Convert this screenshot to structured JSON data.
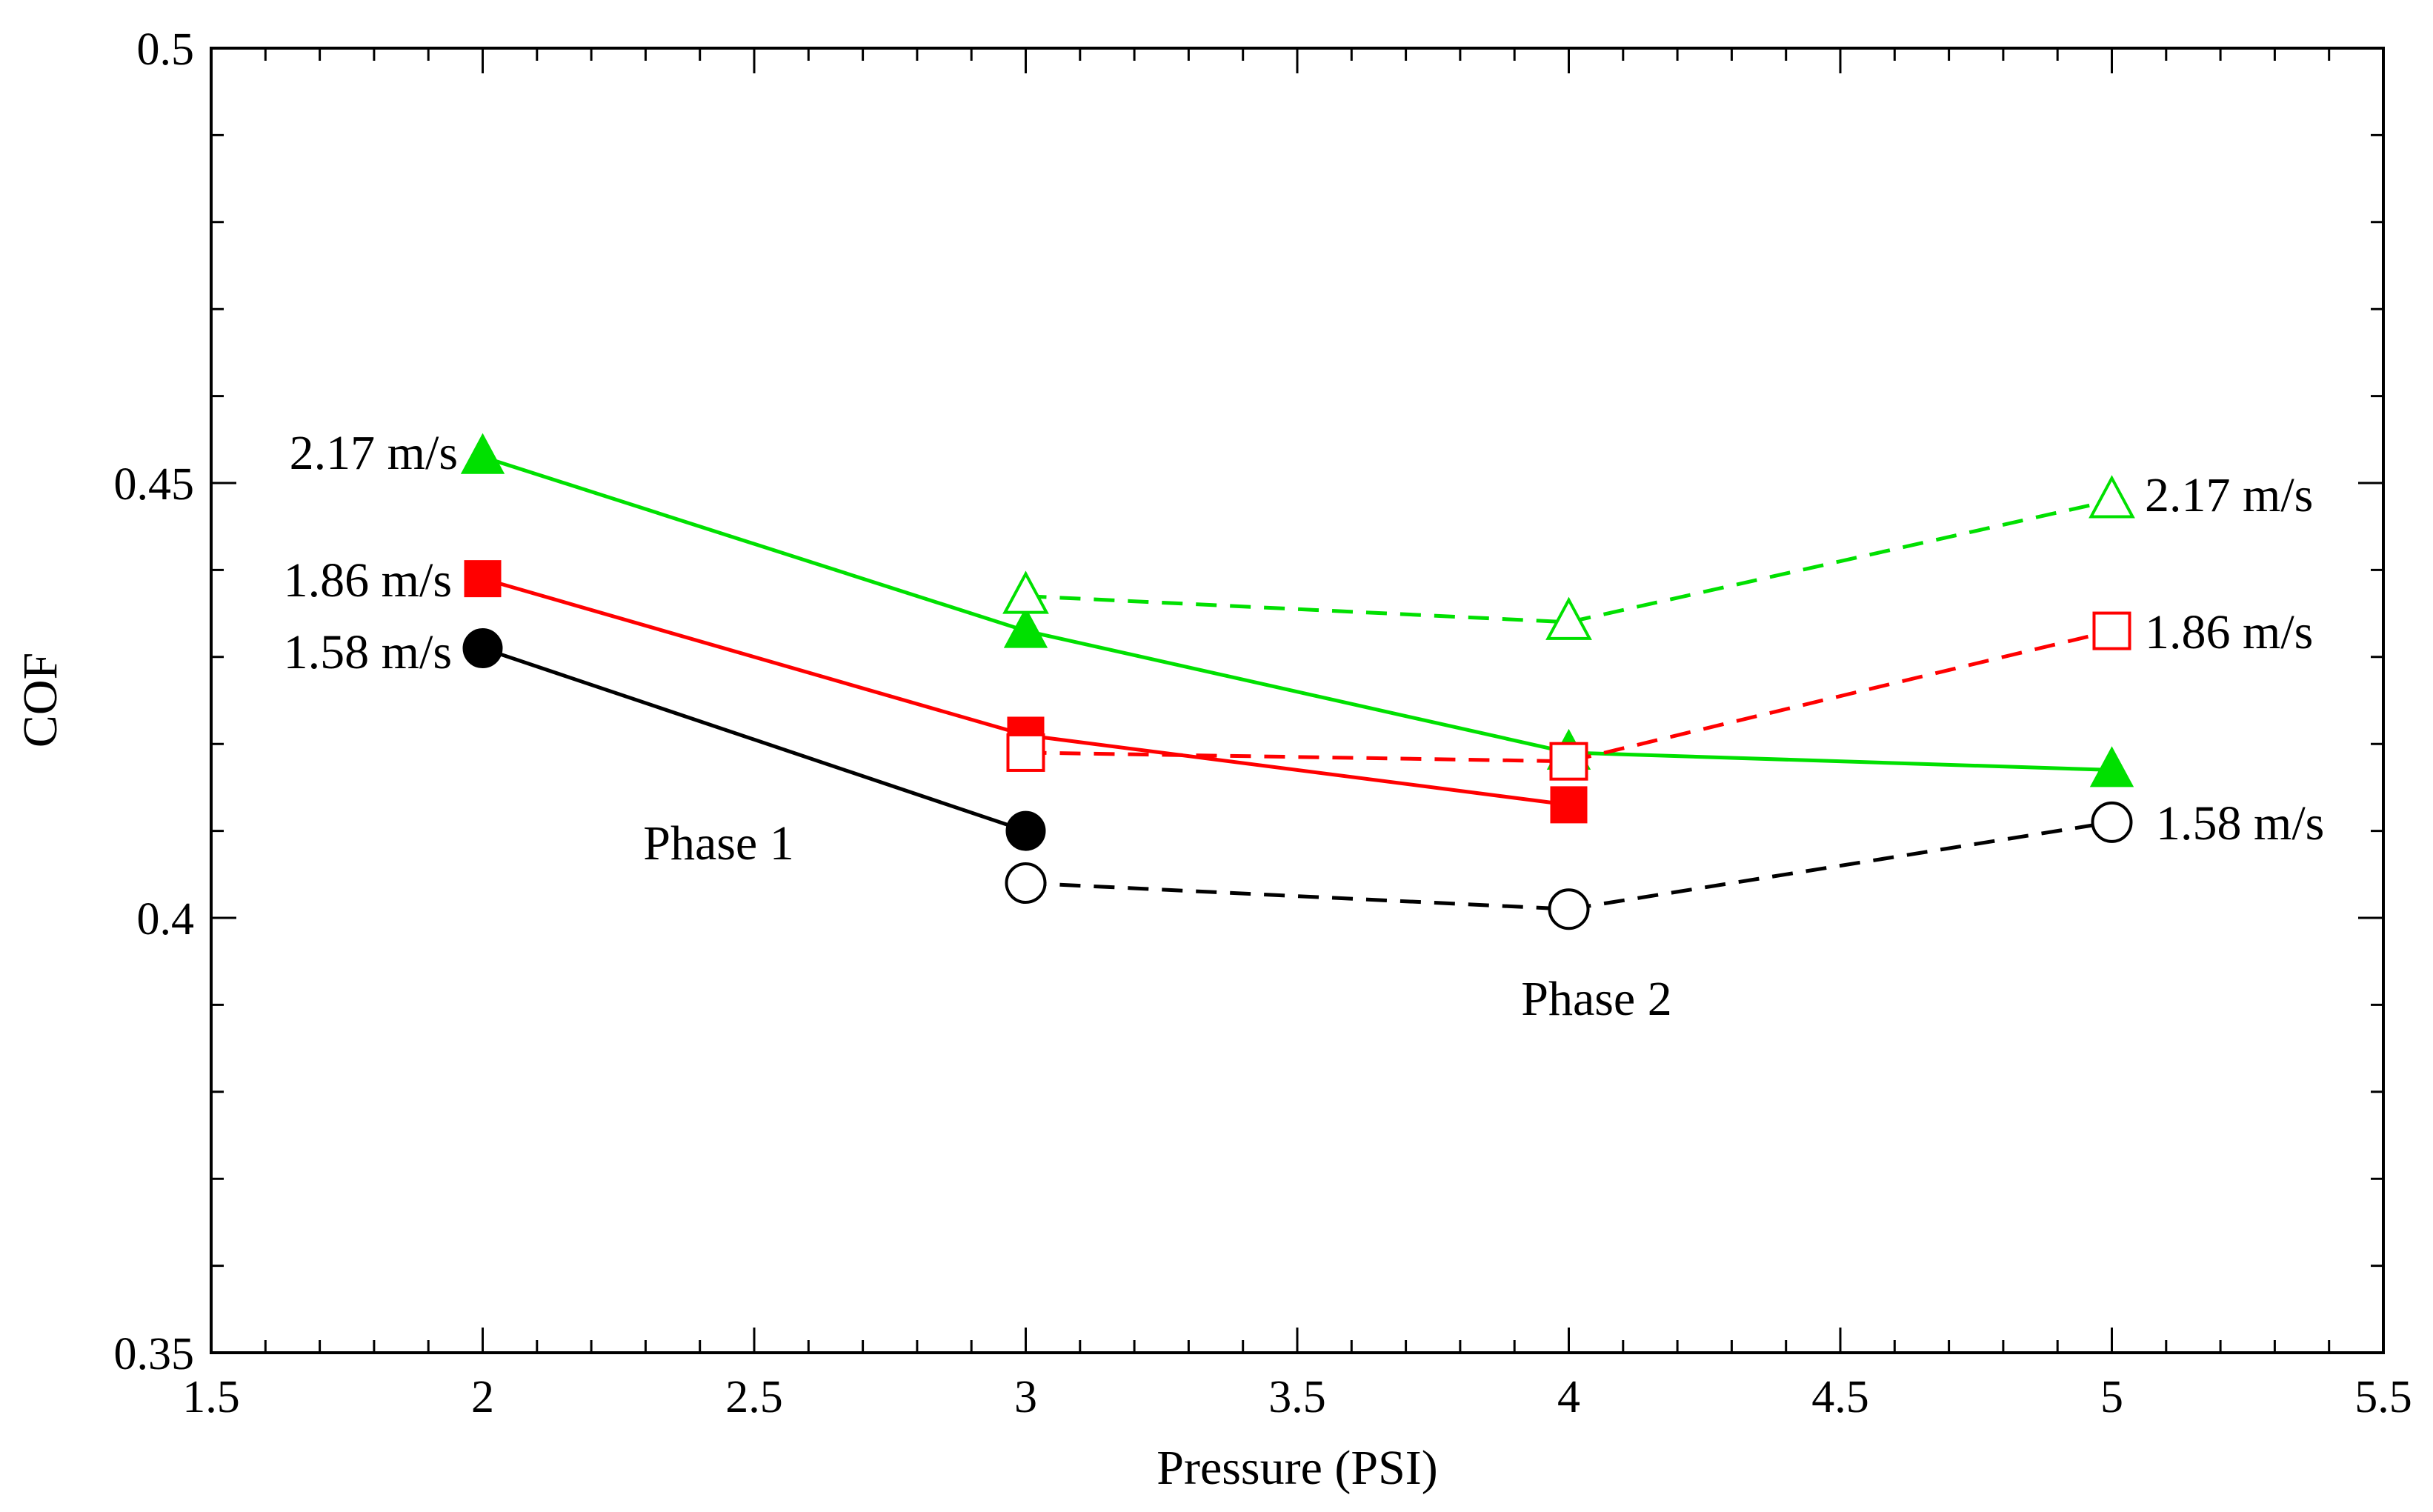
{
  "chart_data": {
    "type": "line",
    "title": "",
    "xlabel": "Pressure (PSI)",
    "ylabel": "COF",
    "xlim": [
      1.5,
      5.5
    ],
    "ylim": [
      0.35,
      0.5
    ],
    "xticks": [
      1.5,
      2,
      2.5,
      3,
      3.5,
      4,
      4.5,
      5,
      5.5
    ],
    "xtick_labels": [
      "1.5",
      "2",
      "2.5",
      "3",
      "3.5",
      "4",
      "4.5",
      "5",
      "5.5"
    ],
    "yticks": [
      0.35,
      0.4,
      0.45,
      0.5
    ],
    "ytick_labels": [
      "0.35",
      "0.4",
      "0.45",
      "0.5"
    ],
    "grid": false,
    "series": [
      {
        "name": "Phase 1 1.58 m/s",
        "color": "#000000",
        "marker": "circle",
        "filled": true,
        "dashed": false,
        "x": [
          2,
          3
        ],
        "y": [
          0.431,
          0.41
        ]
      },
      {
        "name": "Phase 1 1.86 m/s",
        "color": "#ff0000",
        "marker": "square",
        "filled": true,
        "dashed": false,
        "x": [
          2,
          3,
          4
        ],
        "y": [
          0.439,
          0.421,
          0.413
        ]
      },
      {
        "name": "Phase 1 2.17 m/s",
        "color": "#00e000",
        "marker": "triangle",
        "filled": true,
        "dashed": false,
        "x": [
          2,
          3,
          4,
          5
        ],
        "y": [
          0.453,
          0.433,
          0.419,
          0.417
        ]
      },
      {
        "name": "Phase 2 1.58 m/s",
        "color": "#000000",
        "marker": "circle",
        "filled": false,
        "dashed": true,
        "x": [
          3,
          4,
          5
        ],
        "y": [
          0.404,
          0.401,
          0.411
        ]
      },
      {
        "name": "Phase 2 1.86 m/s",
        "color": "#ff0000",
        "marker": "square",
        "filled": false,
        "dashed": true,
        "x": [
          3,
          4,
          5
        ],
        "y": [
          0.419,
          0.418,
          0.433
        ]
      },
      {
        "name": "Phase 2 2.17 m/s",
        "color": "#00e000",
        "marker": "triangle",
        "filled": false,
        "dashed": true,
        "x": [
          3,
          4,
          5
        ],
        "y": [
          0.437,
          0.434,
          0.448
        ]
      }
    ],
    "annotations": {
      "phase1": "Phase 1",
      "phase2": "Phase 2",
      "left_217": "2.17 m/s",
      "left_186": "1.86 m/s",
      "left_158": "1.58 m/s",
      "right_217": "2.17 m/s",
      "right_186": "1.86 m/s",
      "right_158": "1.58 m/s"
    }
  }
}
